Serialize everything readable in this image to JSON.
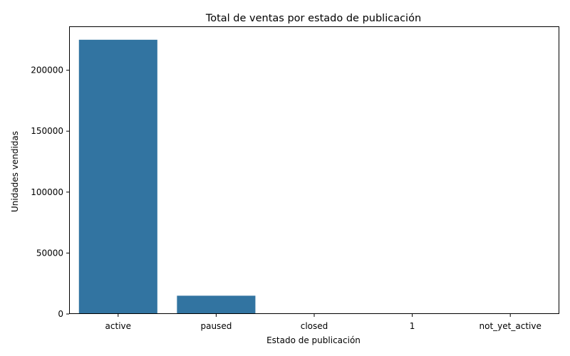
{
  "chart_data": {
    "type": "bar",
    "title": "Total de ventas por estado de publicación",
    "xlabel": "Estado de publicación",
    "ylabel": "Unidades vendidas",
    "categories": [
      "active",
      "paused",
      "closed",
      "1",
      "not_yet_active"
    ],
    "values": [
      225000,
      15000,
      0,
      0,
      0
    ],
    "ylim": [
      0,
      236000
    ],
    "yticks": [
      0,
      50000,
      100000,
      150000,
      200000
    ],
    "bar_color": "#3274a1",
    "grid": false,
    "legend": "none"
  }
}
